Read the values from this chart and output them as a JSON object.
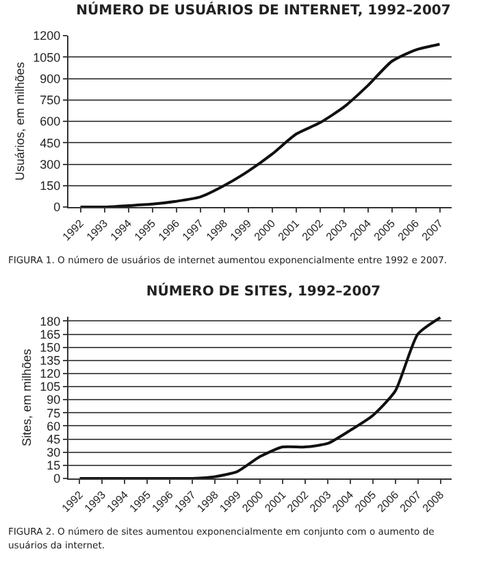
{
  "chart_data": [
    {
      "type": "line",
      "title": "NÚMERO DE USUÁRIOS DE INTERNET, 1992–2007",
      "ylabel": "Usuários, em milhões",
      "categories": [
        "1992",
        "1993",
        "1994",
        "1995",
        "1996",
        "1997",
        "1998",
        "1999",
        "2000",
        "2001",
        "2002",
        "2003",
        "2004",
        "2005",
        "2006",
        "2007"
      ],
      "series": [
        {
          "color": "#111111",
          "values": [
            0,
            0,
            10,
            20,
            40,
            70,
            150,
            250,
            370,
            510,
            590,
            700,
            850,
            1020,
            1100,
            1140
          ]
        }
      ],
      "ylim": [
        0,
        1200
      ],
      "yticks": [
        0,
        150,
        300,
        450,
        600,
        750,
        900,
        1050,
        1200
      ],
      "grid": "y",
      "annotations": [
        "FIGURA 1.  O número de usuários de internet aumentou exponencialmente entre 1992 e 2007."
      ]
    },
    {
      "type": "line",
      "title": "NÚMERO DE SITES, 1992–2007",
      "ylabel": "Sites, em milhões",
      "categories": [
        "1992",
        "1993",
        "1994",
        "1995",
        "1996",
        "1997",
        "1998",
        "1999",
        "2000",
        "2001",
        "2002",
        "2003",
        "2004",
        "2005",
        "2006",
        "2007",
        "2008"
      ],
      "series": [
        {
          "color": "#111111",
          "values": [
            0,
            0,
            0,
            0,
            0,
            0,
            2,
            8,
            25,
            36,
            36,
            40,
            55,
            72,
            100,
            165,
            184
          ]
        }
      ],
      "ylim": [
        0,
        185
      ],
      "yticks": [
        0,
        15,
        30,
        45,
        60,
        75,
        90,
        105,
        120,
        135,
        150,
        165,
        180
      ],
      "grid": "y",
      "annotations": [
        "FIGURA 2.  O número de sites aumentou exponencialmente em conjunto com o aumento de usuários da internet."
      ]
    }
  ]
}
